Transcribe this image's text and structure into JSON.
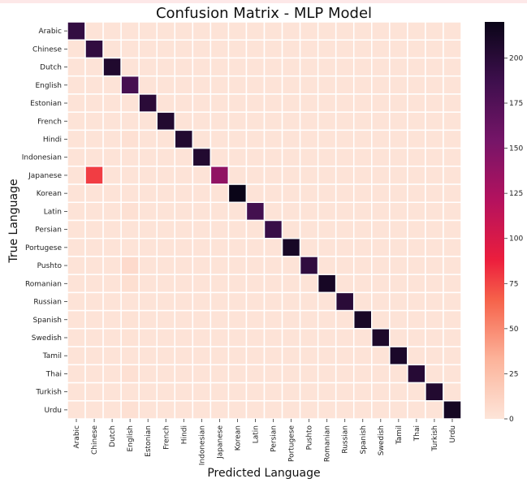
{
  "chart_data": {
    "type": "heatmap",
    "title": "Confusion Matrix - MLP Model",
    "xlabel": "Predicted Language",
    "ylabel": "True Language",
    "categories": [
      "Arabic",
      "Chinese",
      "Dutch",
      "English",
      "Estonian",
      "French",
      "Hindi",
      "Indonesian",
      "Japanese",
      "Korean",
      "Latin",
      "Persian",
      "Portugese",
      "Pushto",
      "Romanian",
      "Russian",
      "Spanish",
      "Swedish",
      "Tamil",
      "Thai",
      "Turkish",
      "Urdu"
    ],
    "diagonal": [
      194,
      195,
      206,
      182,
      200,
      205,
      205,
      205,
      140,
      220,
      184,
      191,
      211,
      196,
      212,
      200,
      211,
      208,
      209,
      202,
      205,
      213
    ],
    "off_diagonal": [
      {
        "row": 8,
        "col": 1,
        "value": 78
      },
      {
        "row": 13,
        "col": 3,
        "value": 7
      },
      {
        "row": 14,
        "col": 3,
        "value": 4
      },
      {
        "row": 10,
        "col": 3,
        "value": 3
      },
      {
        "row": 6,
        "col": 3,
        "value": 3
      },
      {
        "row": 19,
        "col": 3,
        "value": 3
      },
      {
        "row": 21,
        "col": 3,
        "value": 3
      },
      {
        "row": 16,
        "col": 3,
        "value": 2
      },
      {
        "row": 17,
        "col": 3,
        "value": 2
      }
    ],
    "default_off_diagonal": 1,
    "colorbar": {
      "min": 0,
      "max": 220,
      "ticks": [
        0,
        25,
        50,
        75,
        100,
        125,
        150,
        175,
        200
      ]
    },
    "grid": "white cell separators",
    "legend": "colorbar right"
  }
}
